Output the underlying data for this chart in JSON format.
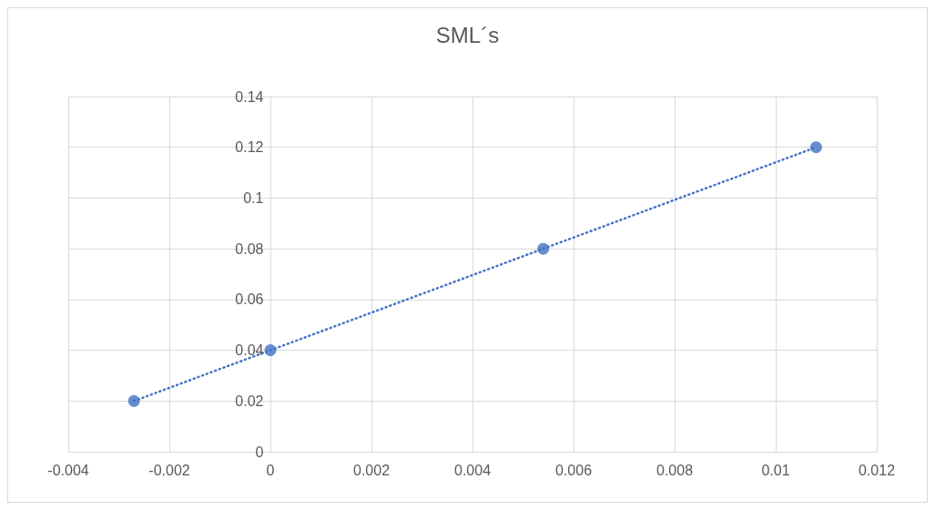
{
  "chart_data": {
    "type": "scatter",
    "title": "SML´s",
    "xlim": [
      -0.004,
      0.012
    ],
    "xticks": [
      -0.004,
      -0.002,
      0,
      0.002,
      0.004,
      0.006,
      0.008,
      0.01,
      0.012
    ],
    "ylim": [
      0,
      0.14
    ],
    "yticks": [
      0,
      0.02,
      0.04,
      0.06,
      0.08,
      0.1,
      0.12,
      0.14
    ],
    "grid": true,
    "marker": "circle",
    "series": [
      {
        "color": "#4472c4",
        "x": [
          -0.0027,
          0,
          0.0054,
          0.0108
        ],
        "values": [
          0.02,
          0.04,
          0.08,
          0.12
        ]
      },
      {
        "type": "line",
        "color": "#4472c4",
        "line_style": "dotted",
        "marker": "none",
        "x": [
          -0.0027,
          0.0108
        ],
        "values": [
          0.02,
          0.12
        ]
      }
    ]
  }
}
